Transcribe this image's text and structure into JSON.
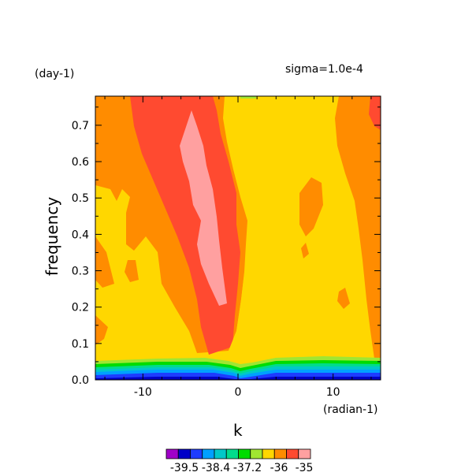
{
  "chart_data": {
    "type": "heatmap",
    "subtitle_left": "(day-1)",
    "subtitle_right": "sigma=1.0e-4",
    "xlabel": "k",
    "xunit": "(radian-1)",
    "ylabel": "frequency",
    "xlim": [
      -15,
      15
    ],
    "ylim": [
      0.0,
      0.78
    ],
    "xticks": [
      "-10",
      "0",
      "10"
    ],
    "xtick_values": [
      -10,
      0,
      10
    ],
    "yticks": [
      "0.0",
      "0.1",
      "0.2",
      "0.3",
      "0.4",
      "0.5",
      "0.6",
      "0.7"
    ],
    "ytick_values": [
      0.0,
      0.1,
      0.2,
      0.3,
      0.4,
      0.5,
      0.6,
      0.7
    ],
    "colorbar": {
      "labels": [
        "-39.5",
        "-38.4",
        "-37.2",
        "-36",
        "-35"
      ],
      "colors": [
        "#a000c8",
        "#0000c8",
        "#1e3cff",
        "#00a0ff",
        "#00c8c8",
        "#00dc8c",
        "#00dc00",
        "#a0e632",
        "#ffd700",
        "#ff8c00",
        "#ff4a30",
        "#ffa0a0"
      ]
    },
    "contour_levels": [
      {
        "level": "lowest",
        "color": "#0000c8"
      },
      {
        "level": "low",
        "color": "#1e3cff"
      },
      {
        "level": "low-mid",
        "color": "#00a0ff"
      },
      {
        "level": "mid",
        "color": "#00c8c8"
      },
      {
        "level": "mid-green",
        "color": "#00dc8c"
      },
      {
        "level": "green",
        "color": "#00dc00"
      },
      {
        "level": "yellow-green",
        "color": "#a0e632"
      },
      {
        "level": "yellow",
        "color": "#ffd700"
      },
      {
        "level": "orange",
        "color": "#ff8c00"
      },
      {
        "level": "red",
        "color": "#ff4a30"
      },
      {
        "level": "pink",
        "color": "#ffa0a0"
      }
    ]
  }
}
